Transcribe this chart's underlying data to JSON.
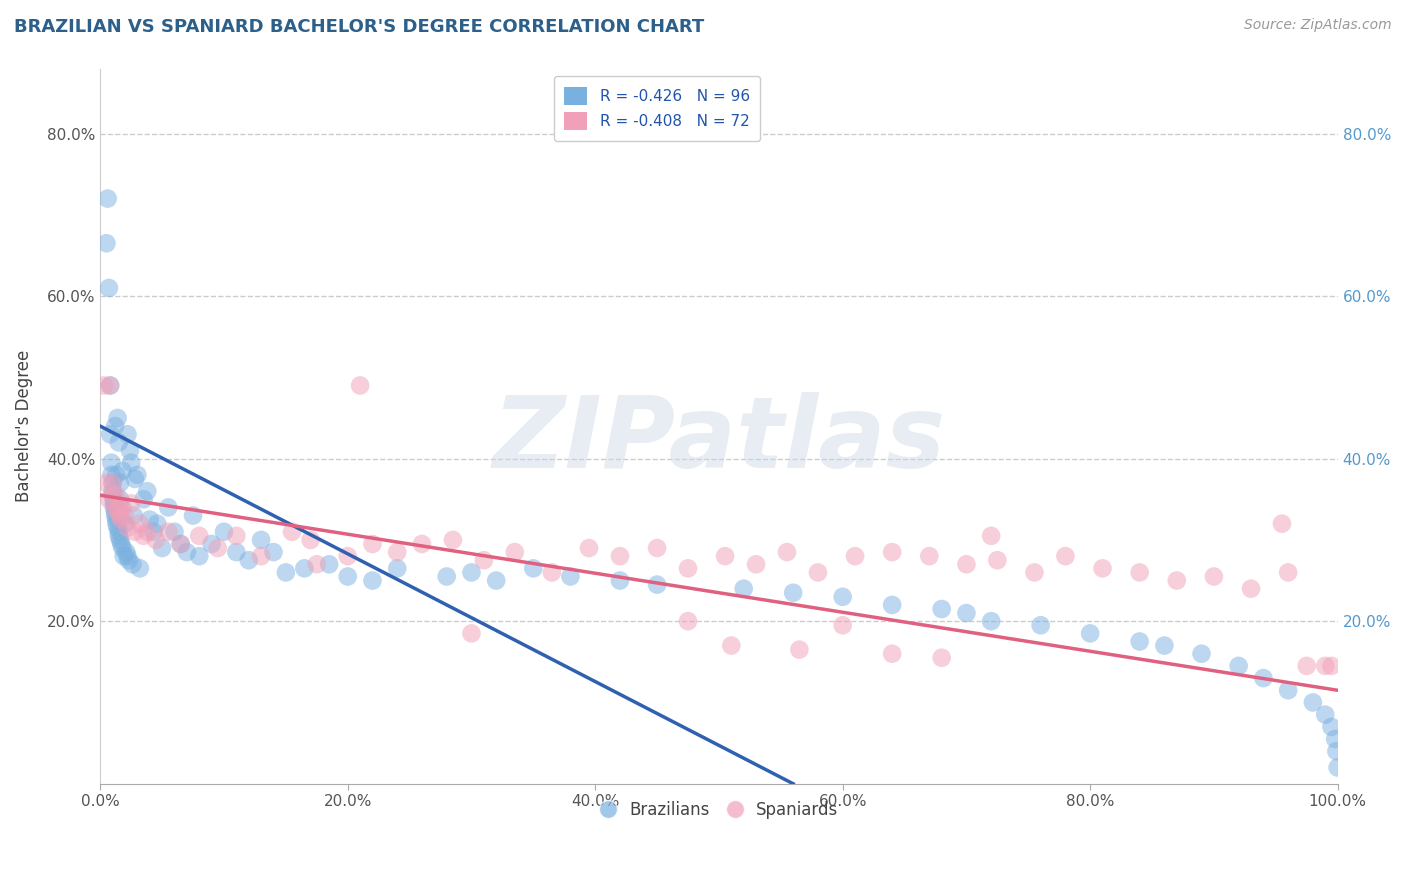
{
  "title": "BRAZILIAN VS SPANIARD BACHELOR'S DEGREE CORRELATION CHART",
  "source_text": "Source: ZipAtlas.com",
  "ylabel": "Bachelor's Degree",
  "watermark": "ZIPatlas",
  "legend_entries": [
    {
      "label": "R = -0.426   N = 96",
      "color": "#a8c8f0"
    },
    {
      "label": "R = -0.408   N = 72",
      "color": "#f0a8c0"
    }
  ],
  "legend_bottom": [
    {
      "label": "Brazilians",
      "color": "#a8c8f0"
    },
    {
      "label": "Spaniards",
      "color": "#f0a8b8"
    }
  ],
  "xlim": [
    0.0,
    1.0
  ],
  "ylim": [
    0.0,
    0.88
  ],
  "xtick_positions": [
    0.0,
    0.2,
    0.4,
    0.6,
    0.8,
    1.0
  ],
  "xtick_labels": [
    "0.0%",
    "20.0%",
    "40.0%",
    "60.0%",
    "80.0%",
    "100.0%"
  ],
  "ytick_positions": [
    0.2,
    0.4,
    0.6,
    0.8
  ],
  "ytick_labels": [
    "20.0%",
    "40.0%",
    "60.0%",
    "80.0%"
  ],
  "title_color": "#2c5f8a",
  "title_fontsize": 13,
  "grid_color": "#cccccc",
  "blue_dot_color": "#7ab0e0",
  "pink_dot_color": "#f0a0b8",
  "blue_line_color": "#3060b0",
  "pink_line_color": "#e06080",
  "blue_line_x": [
    0.0,
    0.56
  ],
  "blue_line_y": [
    0.44,
    0.0
  ],
  "pink_line_x": [
    0.0,
    1.0
  ],
  "pink_line_y": [
    0.355,
    0.115
  ],
  "blue_points_x": [
    0.005,
    0.006,
    0.007,
    0.008,
    0.008,
    0.009,
    0.009,
    0.01,
    0.01,
    0.01,
    0.011,
    0.011,
    0.011,
    0.012,
    0.012,
    0.012,
    0.013,
    0.013,
    0.013,
    0.014,
    0.014,
    0.015,
    0.015,
    0.015,
    0.016,
    0.016,
    0.016,
    0.017,
    0.017,
    0.018,
    0.018,
    0.019,
    0.02,
    0.021,
    0.022,
    0.022,
    0.023,
    0.024,
    0.025,
    0.026,
    0.027,
    0.028,
    0.03,
    0.032,
    0.035,
    0.038,
    0.04,
    0.043,
    0.046,
    0.05,
    0.055,
    0.06,
    0.065,
    0.07,
    0.075,
    0.08,
    0.09,
    0.1,
    0.11,
    0.12,
    0.13,
    0.14,
    0.15,
    0.165,
    0.185,
    0.2,
    0.22,
    0.24,
    0.28,
    0.3,
    0.32,
    0.35,
    0.38,
    0.42,
    0.45,
    0.52,
    0.56,
    0.6,
    0.64,
    0.68,
    0.7,
    0.72,
    0.76,
    0.8,
    0.84,
    0.86,
    0.89,
    0.92,
    0.94,
    0.96,
    0.98,
    0.99,
    0.995,
    0.998,
    0.999,
    1.0
  ],
  "blue_points_y": [
    0.665,
    0.72,
    0.61,
    0.43,
    0.49,
    0.395,
    0.38,
    0.37,
    0.36,
    0.355,
    0.35,
    0.345,
    0.34,
    0.335,
    0.33,
    0.44,
    0.325,
    0.32,
    0.38,
    0.315,
    0.45,
    0.31,
    0.305,
    0.42,
    0.3,
    0.37,
    0.35,
    0.34,
    0.295,
    0.385,
    0.29,
    0.28,
    0.32,
    0.285,
    0.43,
    0.28,
    0.275,
    0.41,
    0.395,
    0.27,
    0.33,
    0.375,
    0.38,
    0.265,
    0.35,
    0.36,
    0.325,
    0.31,
    0.32,
    0.29,
    0.34,
    0.31,
    0.295,
    0.285,
    0.33,
    0.28,
    0.295,
    0.31,
    0.285,
    0.275,
    0.3,
    0.285,
    0.26,
    0.265,
    0.27,
    0.255,
    0.25,
    0.265,
    0.255,
    0.26,
    0.25,
    0.265,
    0.255,
    0.25,
    0.245,
    0.24,
    0.235,
    0.23,
    0.22,
    0.215,
    0.21,
    0.2,
    0.195,
    0.185,
    0.175,
    0.17,
    0.16,
    0.145,
    0.13,
    0.115,
    0.1,
    0.085,
    0.07,
    0.055,
    0.04,
    0.02
  ],
  "pink_points_x": [
    0.003,
    0.005,
    0.007,
    0.008,
    0.01,
    0.011,
    0.012,
    0.013,
    0.014,
    0.015,
    0.016,
    0.017,
    0.018,
    0.02,
    0.022,
    0.025,
    0.028,
    0.032,
    0.038,
    0.045,
    0.055,
    0.065,
    0.08,
    0.095,
    0.11,
    0.13,
    0.155,
    0.175,
    0.2,
    0.22,
    0.24,
    0.26,
    0.285,
    0.31,
    0.335,
    0.365,
    0.395,
    0.42,
    0.45,
    0.475,
    0.505,
    0.53,
    0.555,
    0.58,
    0.61,
    0.64,
    0.67,
    0.7,
    0.725,
    0.755,
    0.78,
    0.81,
    0.84,
    0.87,
    0.9,
    0.93,
    0.96,
    0.975,
    0.99,
    0.995,
    0.035,
    0.17,
    0.21,
    0.3,
    0.475,
    0.51,
    0.565,
    0.6,
    0.64,
    0.68,
    0.72,
    0.955
  ],
  "pink_points_y": [
    0.49,
    0.37,
    0.35,
    0.49,
    0.37,
    0.355,
    0.34,
    0.355,
    0.335,
    0.34,
    0.33,
    0.325,
    0.34,
    0.33,
    0.315,
    0.345,
    0.31,
    0.32,
    0.31,
    0.3,
    0.31,
    0.295,
    0.305,
    0.29,
    0.305,
    0.28,
    0.31,
    0.27,
    0.28,
    0.295,
    0.285,
    0.295,
    0.3,
    0.275,
    0.285,
    0.26,
    0.29,
    0.28,
    0.29,
    0.265,
    0.28,
    0.27,
    0.285,
    0.26,
    0.28,
    0.285,
    0.28,
    0.27,
    0.275,
    0.26,
    0.28,
    0.265,
    0.26,
    0.25,
    0.255,
    0.24,
    0.26,
    0.145,
    0.145,
    0.145,
    0.305,
    0.3,
    0.49,
    0.185,
    0.2,
    0.17,
    0.165,
    0.195,
    0.16,
    0.155,
    0.305,
    0.32
  ]
}
